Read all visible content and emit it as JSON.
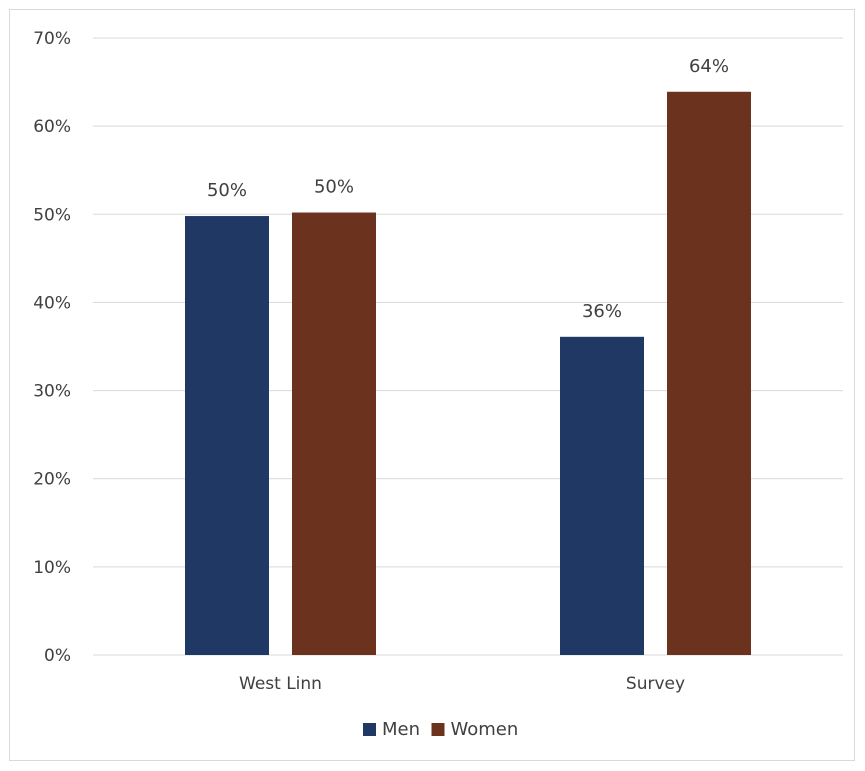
{
  "chart_data": {
    "type": "bar",
    "categories": [
      "West Linn",
      "Survey"
    ],
    "series": [
      {
        "name": "Men",
        "values": [
          49.8,
          36.1
        ],
        "labels": [
          "50%",
          "36%"
        ],
        "color": "#1f3864"
      },
      {
        "name": "Women",
        "values": [
          50.2,
          63.9
        ],
        "labels": [
          "50%",
          "64%"
        ],
        "color": "#6b321e"
      }
    ],
    "ylim": [
      0,
      70
    ],
    "yticks": [
      "0%",
      "10%",
      "20%",
      "30%",
      "40%",
      "50%",
      "60%",
      "70%"
    ],
    "ytick_values": [
      0,
      10,
      20,
      30,
      40,
      50,
      60,
      70
    ],
    "grid": true,
    "legend_position": "bottom",
    "gridline_color": "#d9d9d9",
    "text_color": "#404040"
  }
}
